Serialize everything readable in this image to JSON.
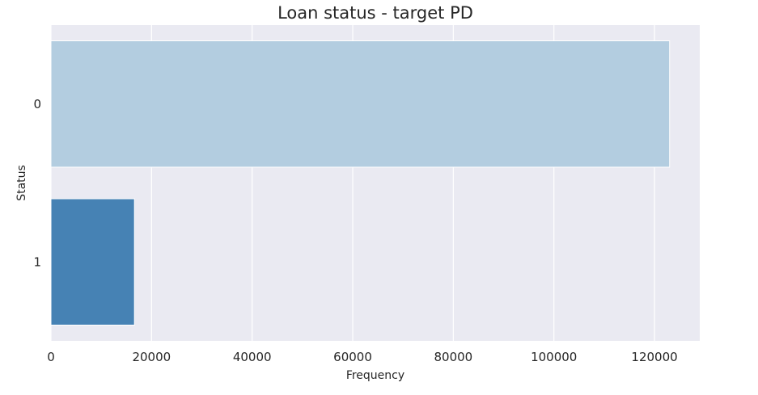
{
  "chart_data": {
    "type": "bar",
    "orientation": "horizontal",
    "title": "Loan status - target PD",
    "xlabel": "Frequency",
    "ylabel": "Status",
    "categories": [
      "0",
      "1"
    ],
    "values": [
      123000,
      16600
    ],
    "xlim": [
      0,
      129000
    ],
    "xticks": [
      0,
      20000,
      40000,
      60000,
      80000,
      100000,
      120000
    ],
    "xtick_labels": [
      "0",
      "20000",
      "40000",
      "60000",
      "80000",
      "100000",
      "120000"
    ],
    "grid": true,
    "background": "#eaeaf2",
    "grid_color": "#ffffff",
    "bar_colors": [
      "#b3cde0",
      "#4682b4"
    ]
  }
}
